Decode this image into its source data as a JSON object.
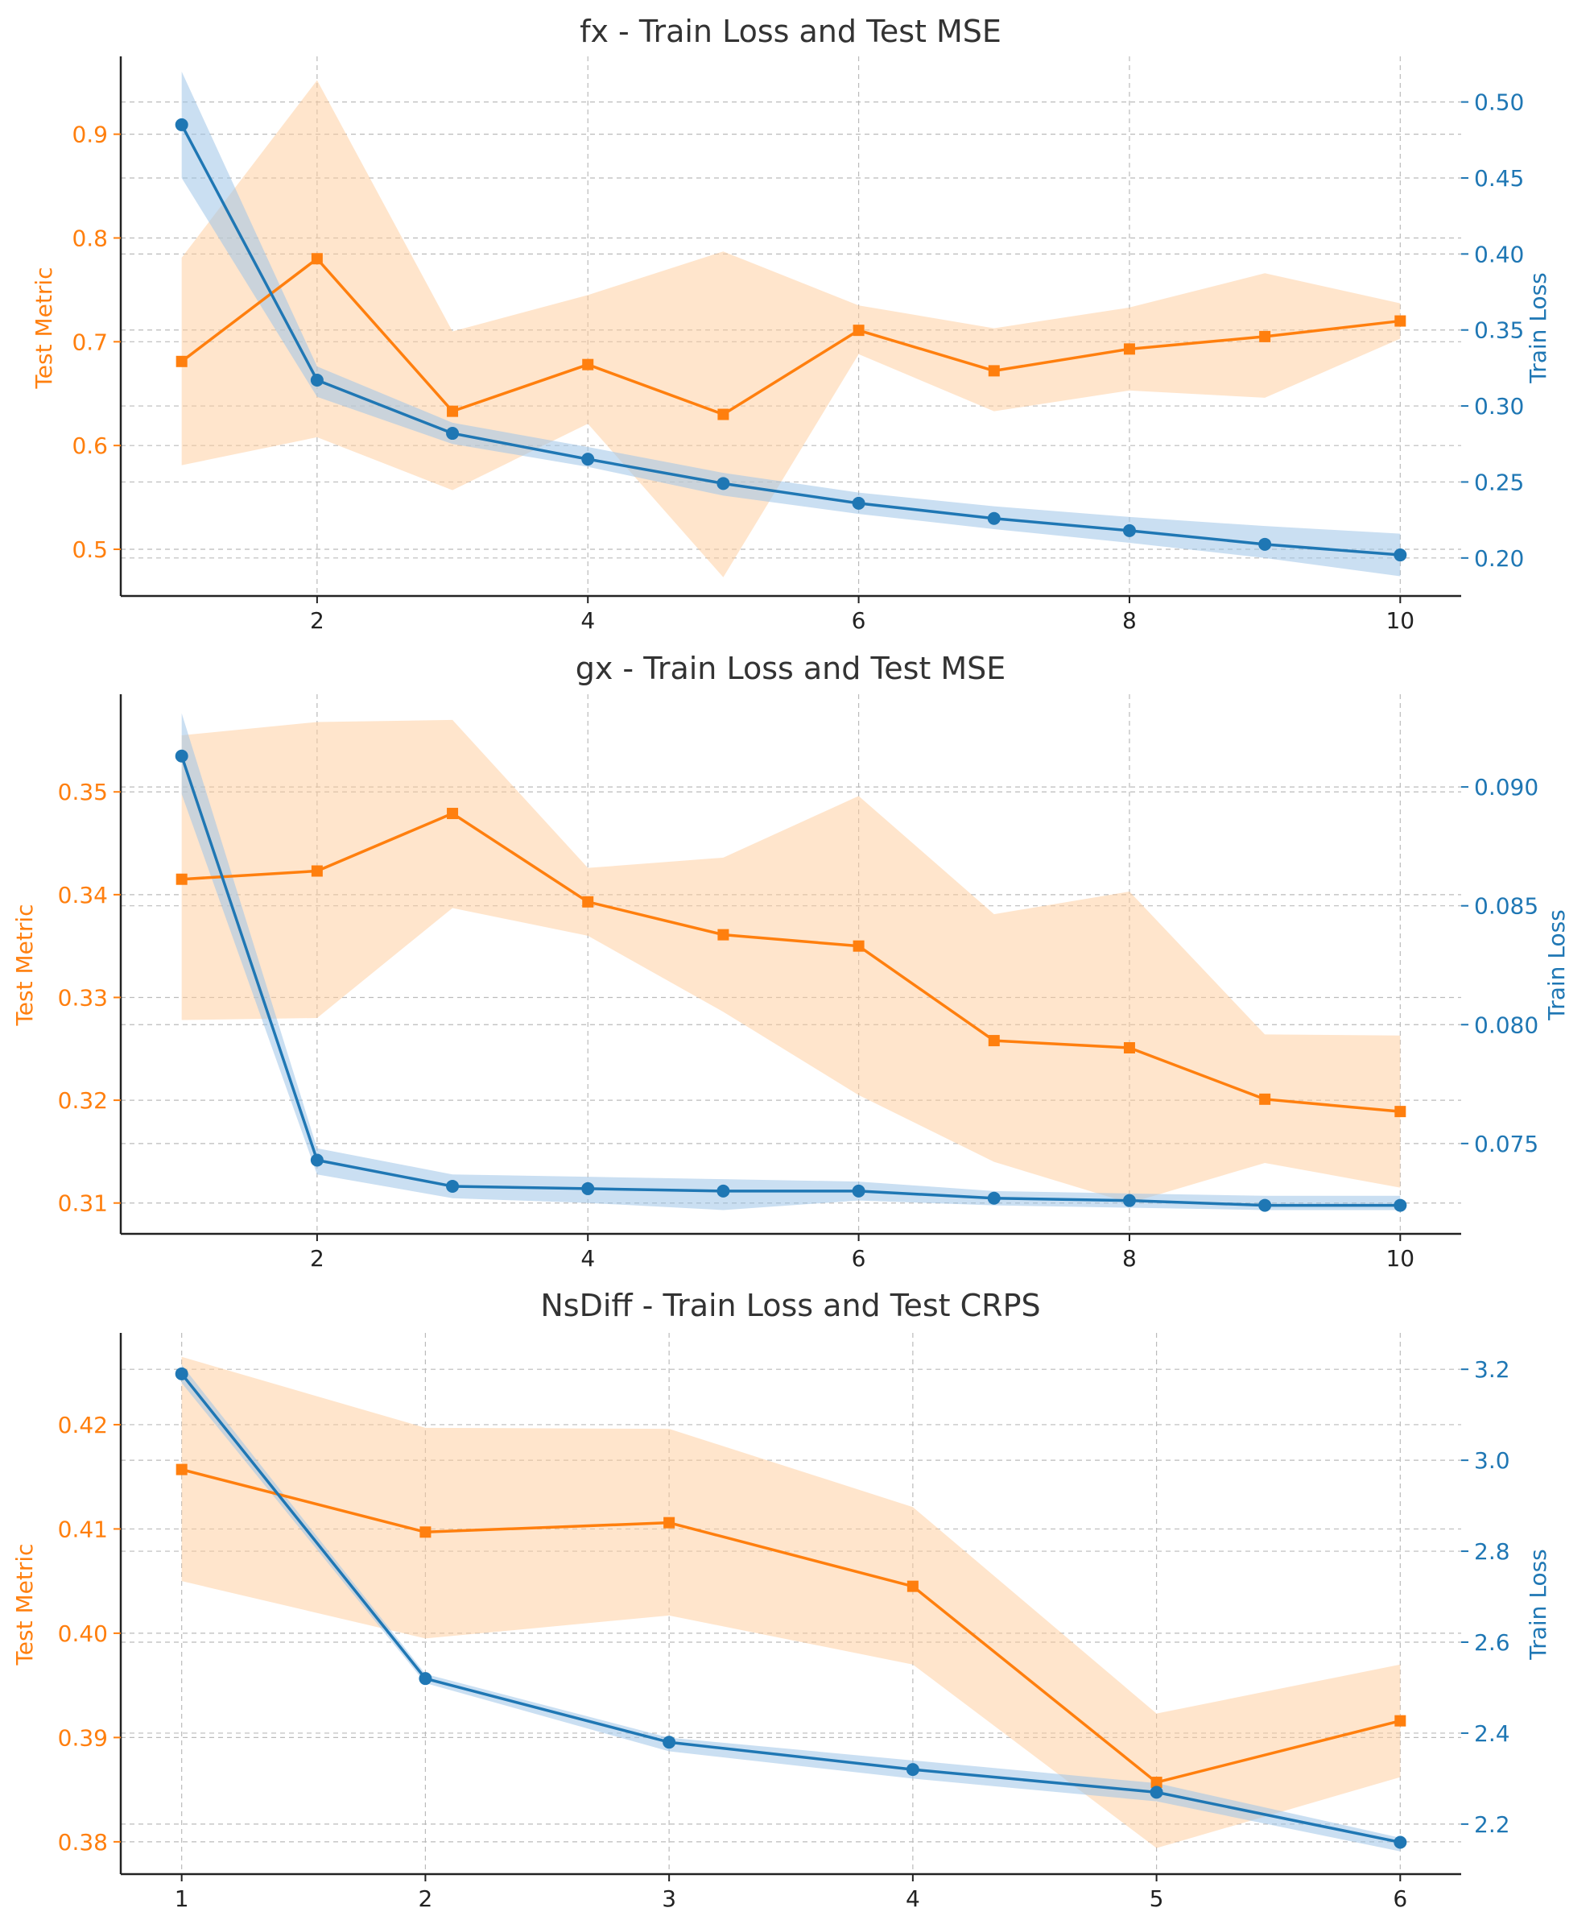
{
  "colors": {
    "test": "#ff7f0e",
    "train": "#1f77b4",
    "test_band": "#ffcc99",
    "train_band": "#9fc5e8",
    "grid": "#bbbbbb",
    "axis": "#222222"
  },
  "chart_data": [
    {
      "type": "line",
      "title": "fx - Train Loss and Test MSE",
      "xlabel": "",
      "ylabel_left": "Test Metric",
      "ylabel_right": "Train Loss",
      "xlim": [
        0.55,
        10.45
      ],
      "xticks": [
        2,
        4,
        6,
        8,
        10
      ],
      "ylim_left": [
        0.455,
        0.975
      ],
      "yticks_left": [
        0.5,
        0.6,
        0.7,
        0.8,
        0.9
      ],
      "ytick_labels_left": [
        "0.5",
        "0.6",
        "0.7",
        "0.8",
        "0.9"
      ],
      "ylim_right": [
        0.175,
        0.53
      ],
      "yticks_right": [
        0.2,
        0.25,
        0.3,
        0.35,
        0.4,
        0.45,
        0.5
      ],
      "ytick_labels_right": [
        "0.20",
        "0.25",
        "0.30",
        "0.35",
        "0.40",
        "0.45",
        "0.50"
      ],
      "grid": true,
      "series": [
        {
          "axis": "left",
          "marker": "square",
          "x": [
            1,
            2,
            3,
            4,
            5,
            6,
            7,
            8,
            9,
            10
          ],
          "values": [
            0.681,
            0.78,
            0.633,
            0.678,
            0.63,
            0.711,
            0.672,
            0.693,
            0.705,
            0.72
          ],
          "lower": [
            0.581,
            0.608,
            0.557,
            0.621,
            0.473,
            0.688,
            0.633,
            0.653,
            0.646,
            0.703
          ],
          "upper": [
            0.781,
            0.952,
            0.71,
            0.745,
            0.787,
            0.735,
            0.713,
            0.733,
            0.766,
            0.737
          ]
        },
        {
          "axis": "right",
          "marker": "circle",
          "x": [
            1,
            2,
            3,
            4,
            5,
            6,
            7,
            8,
            9,
            10
          ],
          "values": [
            0.485,
            0.317,
            0.282,
            0.265,
            0.249,
            0.236,
            0.226,
            0.218,
            0.209,
            0.202
          ],
          "lower": [
            0.45,
            0.306,
            0.275,
            0.26,
            0.241,
            0.229,
            0.219,
            0.21,
            0.2,
            0.188
          ],
          "upper": [
            0.52,
            0.326,
            0.289,
            0.273,
            0.256,
            0.243,
            0.234,
            0.227,
            0.221,
            0.216
          ]
        }
      ]
    },
    {
      "type": "line",
      "title": "gx - Train Loss and Test MSE",
      "xlabel": "",
      "ylabel_left": "Test Metric",
      "ylabel_right": "Train Loss",
      "xlim": [
        0.55,
        10.45
      ],
      "xticks": [
        2,
        4,
        6,
        8,
        10
      ],
      "ylim_left": [
        0.307,
        0.3595
      ],
      "yticks_left": [
        0.31,
        0.32,
        0.33,
        0.34,
        0.35
      ],
      "ytick_labels_left": [
        "0.31",
        "0.32",
        "0.33",
        "0.34",
        "0.35"
      ],
      "ylim_right": [
        0.0712,
        0.0939
      ],
      "yticks_right": [
        0.075,
        0.08,
        0.085,
        0.09
      ],
      "ytick_labels_right": [
        "0.075",
        "0.080",
        "0.085",
        "0.090"
      ],
      "grid": true,
      "series": [
        {
          "axis": "left",
          "marker": "square",
          "x": [
            1,
            2,
            3,
            4,
            5,
            6,
            7,
            8,
            9,
            10
          ],
          "values": [
            0.3415,
            0.3423,
            0.3479,
            0.3393,
            0.3361,
            0.335,
            0.3258,
            0.3251,
            0.3201,
            0.3189
          ],
          "lower": [
            0.3278,
            0.328,
            0.3387,
            0.336,
            0.3286,
            0.3205,
            0.314,
            0.31,
            0.3139,
            0.3115
          ],
          "upper": [
            0.3555,
            0.3568,
            0.357,
            0.3426,
            0.3436,
            0.3496,
            0.3381,
            0.3403,
            0.3264,
            0.3263
          ]
        },
        {
          "axis": "right",
          "marker": "circle",
          "x": [
            1,
            2,
            3,
            4,
            5,
            6,
            7,
            8,
            9,
            10
          ],
          "values": [
            0.0913,
            0.0743,
            0.0732,
            0.0731,
            0.073,
            0.073,
            0.0727,
            0.0726,
            0.0724,
            0.0724
          ],
          "lower": [
            0.0897,
            0.0737,
            0.0727,
            0.0725,
            0.0722,
            0.0726,
            0.0724,
            0.0723,
            0.0722,
            0.0722
          ],
          "upper": [
            0.0931,
            0.0748,
            0.0737,
            0.0736,
            0.0735,
            0.0734,
            0.073,
            0.0729,
            0.0728,
            0.0728
          ]
        }
      ]
    },
    {
      "type": "line",
      "title": "NsDiff - Train Loss and Test CRPS",
      "xlabel": "",
      "ylabel_left": "Test Metric",
      "ylabel_right": "Train Loss",
      "xlim": [
        0.75,
        6.25
      ],
      "xticks": [
        1,
        2,
        3,
        4,
        5,
        6
      ],
      "ylim_left": [
        0.3769,
        0.4288
      ],
      "yticks_left": [
        0.38,
        0.39,
        0.4,
        0.41,
        0.42
      ],
      "ytick_labels_left": [
        "0.38",
        "0.39",
        "0.40",
        "0.41",
        "0.42"
      ],
      "ylim_right": [
        2.09,
        3.28
      ],
      "yticks_right": [
        2.2,
        2.4,
        2.6,
        2.8,
        3.0,
        3.2
      ],
      "ytick_labels_right": [
        "2.2",
        "2.4",
        "2.6",
        "2.8",
        "3.0",
        "3.2"
      ],
      "grid": true,
      "series": [
        {
          "axis": "left",
          "marker": "square",
          "x": [
            1,
            2,
            3,
            4,
            5,
            6
          ],
          "values": [
            0.4157,
            0.4097,
            0.4106,
            0.4045,
            0.3857,
            0.3916
          ],
          "lower": [
            0.405,
            0.3995,
            0.4017,
            0.397,
            0.3794,
            0.3862
          ],
          "upper": [
            0.4265,
            0.4197,
            0.4196,
            0.4121,
            0.3923,
            0.397
          ]
        },
        {
          "axis": "right",
          "marker": "circle",
          "x": [
            1,
            2,
            3,
            4,
            5,
            6
          ],
          "values": [
            3.19,
            2.52,
            2.38,
            2.32,
            2.27,
            2.16
          ],
          "lower": [
            3.17,
            2.51,
            2.36,
            2.3,
            2.25,
            2.14
          ],
          "upper": [
            3.21,
            2.53,
            2.39,
            2.34,
            2.29,
            2.17
          ]
        }
      ]
    }
  ]
}
